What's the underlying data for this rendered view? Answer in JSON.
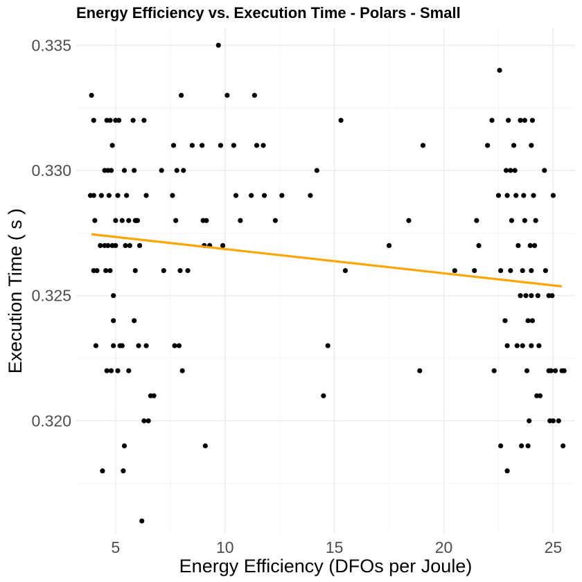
{
  "chart_data": {
    "type": "scatter",
    "title": "Energy Efficiency vs. Execution Time  -  Polars  -  Small",
    "xlabel": "Energy Efficiency (DFOs per Joule)",
    "ylabel": "Execution Time ( s )",
    "xlim": [
      3.2,
      26.0
    ],
    "ylim": [
      0.3155,
      0.3357
    ],
    "x_ticks": [
      5,
      10,
      15,
      20,
      25
    ],
    "x_tick_labels": [
      "5",
      "10",
      "15",
      "20",
      "25"
    ],
    "y_ticks": [
      0.32,
      0.325,
      0.33,
      0.335
    ],
    "y_tick_labels": [
      "0.320",
      "0.325",
      "0.330",
      "0.335"
    ],
    "grid": true,
    "point_color": "#000000",
    "trend_color": "#FFA500",
    "trend_line": {
      "x": [
        3.9,
        25.4
      ],
      "y": [
        0.32745,
        0.32537
      ]
    },
    "points": [
      [
        3.9,
        0.333
      ],
      [
        4.0,
        0.332
      ],
      [
        3.85,
        0.329
      ],
      [
        4.0,
        0.329
      ],
      [
        4.05,
        0.328
      ],
      [
        4.0,
        0.326
      ],
      [
        4.15,
        0.326
      ],
      [
        4.1,
        0.323
      ],
      [
        4.3,
        0.327
      ],
      [
        4.35,
        0.329
      ],
      [
        4.4,
        0.318
      ],
      [
        4.5,
        0.33
      ],
      [
        4.55,
        0.326
      ],
      [
        4.5,
        0.327
      ],
      [
        4.6,
        0.332
      ],
      [
        4.65,
        0.33
      ],
      [
        4.65,
        0.327
      ],
      [
        4.6,
        0.322
      ],
      [
        4.75,
        0.332
      ],
      [
        4.8,
        0.33
      ],
      [
        4.7,
        0.329
      ],
      [
        4.75,
        0.326
      ],
      [
        4.8,
        0.322
      ],
      [
        4.85,
        0.327
      ],
      [
        4.85,
        0.331
      ],
      [
        4.9,
        0.325
      ],
      [
        4.9,
        0.324
      ],
      [
        4.9,
        0.323
      ],
      [
        5.0,
        0.327
      ],
      [
        5.0,
        0.328
      ],
      [
        5.0,
        0.332
      ],
      [
        5.1,
        0.322
      ],
      [
        5.15,
        0.332
      ],
      [
        5.1,
        0.329
      ],
      [
        5.2,
        0.323
      ],
      [
        5.3,
        0.323
      ],
      [
        5.3,
        0.328
      ],
      [
        5.35,
        0.318
      ],
      [
        5.4,
        0.319
      ],
      [
        5.4,
        0.33
      ],
      [
        5.45,
        0.327
      ],
      [
        5.5,
        0.329
      ],
      [
        5.6,
        0.328
      ],
      [
        5.6,
        0.322
      ],
      [
        5.65,
        0.327
      ],
      [
        5.8,
        0.332
      ],
      [
        5.85,
        0.33
      ],
      [
        5.9,
        0.328
      ],
      [
        5.85,
        0.324
      ],
      [
        5.9,
        0.326
      ],
      [
        5.95,
        0.328
      ],
      [
        6.0,
        0.328
      ],
      [
        6.05,
        0.323
      ],
      [
        6.1,
        0.327
      ],
      [
        6.2,
        0.316
      ],
      [
        6.3,
        0.332
      ],
      [
        6.3,
        0.32
      ],
      [
        6.4,
        0.329
      ],
      [
        6.4,
        0.323
      ],
      [
        6.5,
        0.32
      ],
      [
        6.6,
        0.321
      ],
      [
        6.75,
        0.321
      ],
      [
        7.1,
        0.33
      ],
      [
        7.2,
        0.326
      ],
      [
        7.6,
        0.329
      ],
      [
        7.65,
        0.331
      ],
      [
        7.7,
        0.323
      ],
      [
        7.75,
        0.328
      ],
      [
        7.8,
        0.33
      ],
      [
        7.9,
        0.323
      ],
      [
        7.95,
        0.326
      ],
      [
        8.0,
        0.333
      ],
      [
        8.05,
        0.322
      ],
      [
        8.1,
        0.33
      ],
      [
        8.3,
        0.326
      ],
      [
        8.5,
        0.331
      ],
      [
        8.95,
        0.331
      ],
      [
        9.0,
        0.328
      ],
      [
        9.05,
        0.327
      ],
      [
        9.1,
        0.319
      ],
      [
        9.15,
        0.328
      ],
      [
        9.3,
        0.327
      ],
      [
        9.7,
        0.335
      ],
      [
        9.8,
        0.331
      ],
      [
        9.9,
        0.327
      ],
      [
        10.1,
        0.333
      ],
      [
        10.4,
        0.331
      ],
      [
        10.5,
        0.329
      ],
      [
        10.7,
        0.328
      ],
      [
        11.2,
        0.329
      ],
      [
        11.35,
        0.333
      ],
      [
        11.45,
        0.331
      ],
      [
        11.75,
        0.331
      ],
      [
        11.8,
        0.329
      ],
      [
        12.3,
        0.328
      ],
      [
        12.6,
        0.329
      ],
      [
        13.9,
        0.329
      ],
      [
        14.2,
        0.33
      ],
      [
        14.5,
        0.321
      ],
      [
        14.7,
        0.323
      ],
      [
        15.3,
        0.332
      ],
      [
        15.5,
        0.326
      ],
      [
        17.5,
        0.327
      ],
      [
        18.4,
        0.328
      ],
      [
        18.9,
        0.322
      ],
      [
        19.05,
        0.331
      ],
      [
        20.5,
        0.326
      ],
      [
        21.4,
        0.326
      ],
      [
        21.5,
        0.328
      ],
      [
        21.6,
        0.327
      ],
      [
        22.0,
        0.331
      ],
      [
        22.2,
        0.332
      ],
      [
        22.3,
        0.322
      ],
      [
        22.5,
        0.329
      ],
      [
        22.55,
        0.334
      ],
      [
        22.6,
        0.326
      ],
      [
        22.6,
        0.319
      ],
      [
        22.8,
        0.324
      ],
      [
        22.85,
        0.33
      ],
      [
        22.9,
        0.318
      ],
      [
        22.9,
        0.323
      ],
      [
        22.9,
        0.329
      ],
      [
        22.95,
        0.332
      ],
      [
        23.05,
        0.33
      ],
      [
        23.05,
        0.326
      ],
      [
        23.1,
        0.328
      ],
      [
        23.2,
        0.331
      ],
      [
        23.25,
        0.33
      ],
      [
        23.3,
        0.329
      ],
      [
        23.35,
        0.323
      ],
      [
        23.4,
        0.327
      ],
      [
        23.5,
        0.332
      ],
      [
        23.5,
        0.325
      ],
      [
        23.55,
        0.319
      ],
      [
        23.6,
        0.326
      ],
      [
        23.6,
        0.323
      ],
      [
        23.65,
        0.329
      ],
      [
        23.7,
        0.332
      ],
      [
        23.7,
        0.328
      ],
      [
        23.75,
        0.325
      ],
      [
        23.8,
        0.322
      ],
      [
        23.85,
        0.324
      ],
      [
        23.85,
        0.319
      ],
      [
        23.9,
        0.32
      ],
      [
        23.95,
        0.327
      ],
      [
        24.0,
        0.331
      ],
      [
        24.0,
        0.326
      ],
      [
        24.0,
        0.323
      ],
      [
        24.0,
        0.325
      ],
      [
        24.05,
        0.332
      ],
      [
        24.05,
        0.324
      ],
      [
        24.1,
        0.329
      ],
      [
        24.15,
        0.327
      ],
      [
        24.2,
        0.328
      ],
      [
        24.25,
        0.321
      ],
      [
        24.3,
        0.325
      ],
      [
        24.35,
        0.323
      ],
      [
        24.4,
        0.321
      ],
      [
        24.6,
        0.33
      ],
      [
        24.65,
        0.326
      ],
      [
        24.8,
        0.325
      ],
      [
        24.8,
        0.322
      ],
      [
        24.85,
        0.32
      ],
      [
        24.9,
        0.322
      ],
      [
        24.95,
        0.325
      ],
      [
        25.0,
        0.329
      ],
      [
        25.0,
        0.32
      ],
      [
        25.1,
        0.322
      ],
      [
        25.25,
        0.32
      ],
      [
        25.4,
        0.322
      ],
      [
        25.45,
        0.319
      ],
      [
        25.5,
        0.322
      ]
    ]
  }
}
